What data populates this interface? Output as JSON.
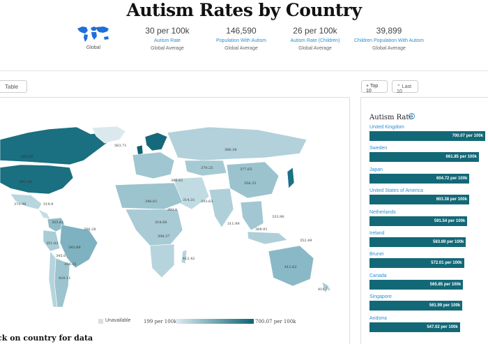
{
  "title": "Autism Rates by Country",
  "globe": {
    "icon": "world-map-icon",
    "label": "Global"
  },
  "stats": [
    {
      "value": "30 per 100k",
      "label": "Autism Rate",
      "sub": "Global Average"
    },
    {
      "value": "146,590",
      "label": "Population With Autism",
      "sub": "Global Average"
    },
    {
      "value": "26 per 100k",
      "label": "Autism Rate (Children)",
      "sub": "Global Average"
    },
    {
      "value": "39,899",
      "label": "Children Population With Autism",
      "sub": "Global Average"
    }
  ],
  "controls": {
    "table": "Table",
    "top10": "+ Top 10",
    "last10": "⌃ Last 10"
  },
  "legend": {
    "unavailable": "Unavailable",
    "min": "199 per 100k",
    "max": "700.07 per 100k",
    "colorMin": "#dcecf1",
    "colorMax": "#0f6375"
  },
  "click_hint": "ck on country for data",
  "panel": {
    "title": "Autism Rate",
    "info_icon": "info-icon"
  },
  "accent_color": "#2a8fd0",
  "bar_color": "#136877",
  "ranking": [
    {
      "name": "United Kingdom",
      "value": "700.07 per 100k",
      "rate": 700.07
    },
    {
      "name": "Sweden",
      "value": "661.85 per 100k",
      "rate": 661.85
    },
    {
      "name": "Japan",
      "value": "604.72 per 100k",
      "rate": 604.72
    },
    {
      "name": "United States of America",
      "value": "603.38 per 100k",
      "rate": 603.38
    },
    {
      "name": "Netherlands",
      "value": "591.54 per 100k",
      "rate": 591.54
    },
    {
      "name": "Ireland",
      "value": "583.69 per 100k",
      "rate": 583.69
    },
    {
      "name": "Brunei",
      "value": "572.01 per 100k",
      "rate": 572.01
    },
    {
      "name": "Canada",
      "value": "565.85 per 100k",
      "rate": 565.85
    },
    {
      "name": "Singapore",
      "value": "561.99 per 100k",
      "rate": 561.99
    },
    {
      "name": "Andorra",
      "value": "547.02 per 100k",
      "rate": 547.02
    }
  ],
  "map_labels": [
    "565.85",
    "603.38",
    "370.96",
    "519.9",
    "355.61",
    "345.89",
    "345.6",
    "351.62",
    "350.35",
    "386.28",
    "420.11",
    "563.71",
    "386.38",
    "370.25",
    "377.65",
    "356.33",
    "386.62",
    "314.31",
    "293.63",
    "302.1",
    "311.99",
    "318.66",
    "398.37",
    "412.42",
    "412.62",
    "333.96",
    "352.49",
    "388.91",
    "416.71",
    "346.61"
  ]
}
